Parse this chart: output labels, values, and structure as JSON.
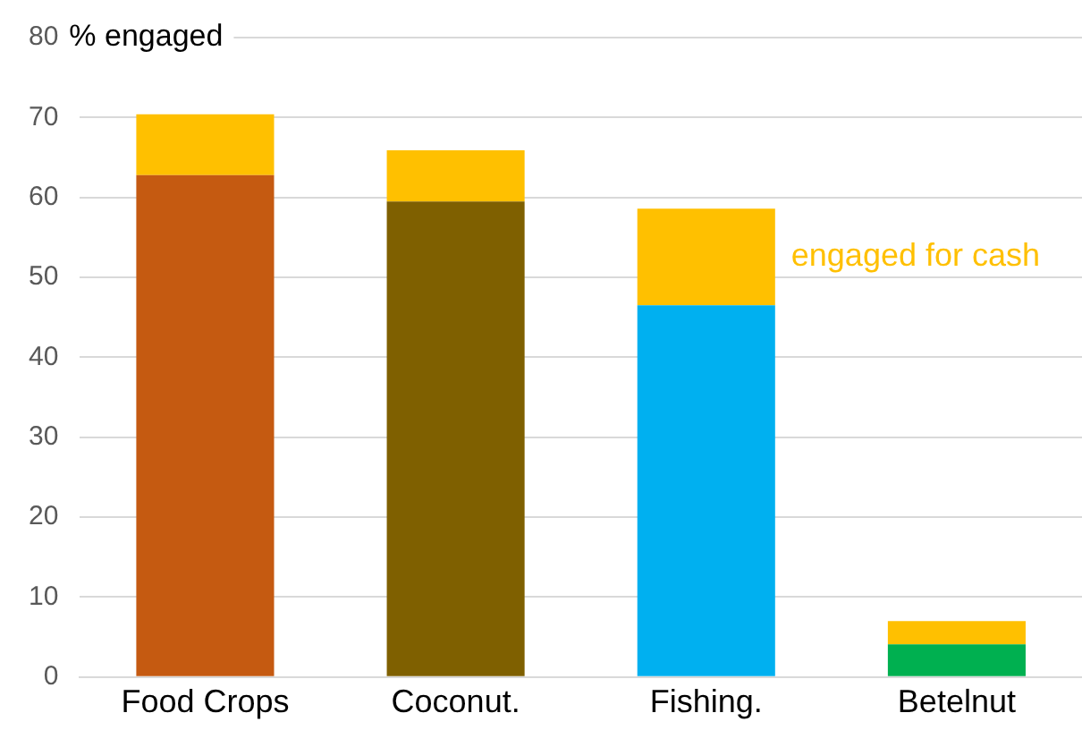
{
  "chart_data": {
    "type": "bar",
    "stacked": true,
    "ylabel": "% engaged",
    "categories": [
      "Food Crops",
      "Coconut.",
      "Fishing.",
      "Betelnut"
    ],
    "series": [
      {
        "colors": [
          "#c55a11",
          "#7f6000",
          "#00b0f0",
          "#00b050"
        ],
        "values": [
          62.8,
          59.5,
          46.5,
          4.1
        ]
      },
      {
        "name": "engaged for cash",
        "color": "#ffc000",
        "values": [
          7.6,
          6.4,
          12.1,
          2.9
        ]
      }
    ],
    "ylim": [
      0,
      80
    ],
    "yticks": [
      0,
      10,
      20,
      30,
      40,
      50,
      60,
      70,
      80
    ],
    "grid": "y",
    "legend": false
  }
}
